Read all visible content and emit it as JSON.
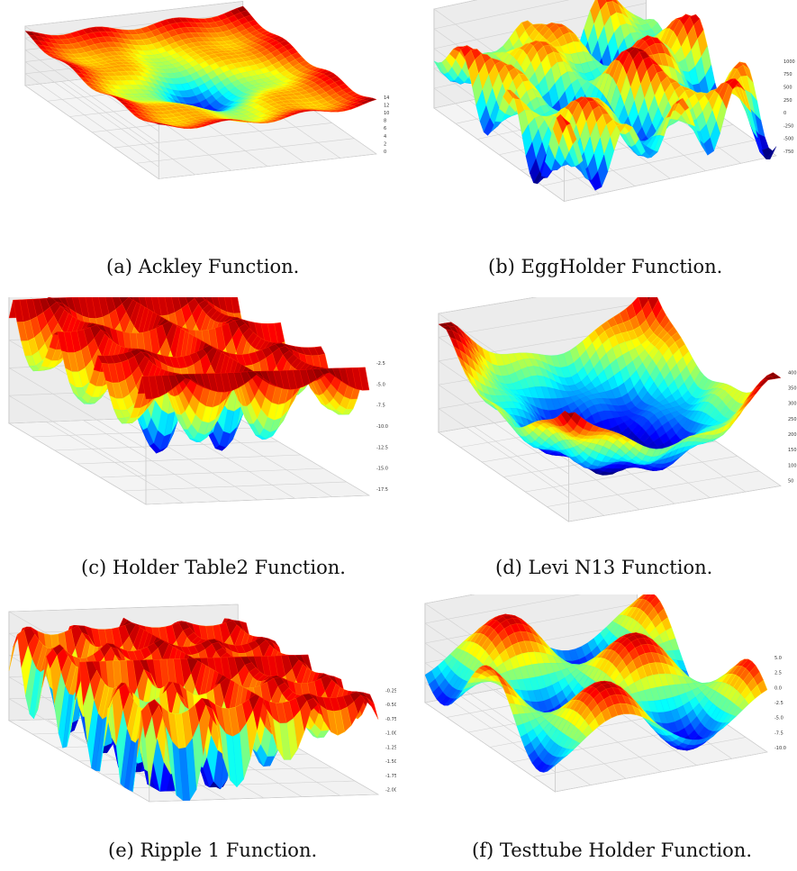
{
  "figure": {
    "panels": [
      {
        "label": "(a) Ackley Function.",
        "function": "ackley",
        "surface": "bowl-peak",
        "z_ticks": [
          "0",
          "2",
          "4",
          "6",
          "8",
          "10",
          "12",
          "14"
        ]
      },
      {
        "label": "(b) EggHolder Function.",
        "function": "eggholder",
        "surface": "rugged",
        "z_ticks": [
          "-750",
          "-500",
          "-250",
          "0",
          "250",
          "500",
          "750",
          "1000"
        ]
      },
      {
        "label": "(c) Holder Table2 Function.",
        "function": "holder_table2",
        "surface": "plateau-wells",
        "z_ticks": [
          "-17.5",
          "-15.0",
          "-12.5",
          "-10.0",
          "-7.5",
          "-5.0",
          "-2.5"
        ]
      },
      {
        "label": "(d) Levi N13 Function.",
        "function": "levi_n13",
        "surface": "bowl",
        "z_ticks": [
          "50",
          "100",
          "150",
          "200",
          "250",
          "300",
          "350",
          "400"
        ]
      },
      {
        "label": "(e) Ripple 1 Function.",
        "function": "ripple1",
        "surface": "plateau-wells",
        "z_ticks": [
          "-2.00",
          "-1.75",
          "-1.50",
          "-1.25",
          "-1.00",
          "-0.75",
          "-0.50",
          "-0.25"
        ]
      },
      {
        "label": "(f) Testtube Holder Function.",
        "function": "testtube_holder",
        "surface": "bumps",
        "z_ticks": [
          "-10.0",
          "-7.5",
          "-5.0",
          "-2.5",
          "0.0",
          "2.5",
          "5.0"
        ]
      }
    ],
    "colormap": "jet",
    "colors": {
      "low": "#00007f",
      "mid": "#7fff7f",
      "high": "#7f0000",
      "grid": "#d0d0d0",
      "pane": "#f2f2f2"
    }
  }
}
